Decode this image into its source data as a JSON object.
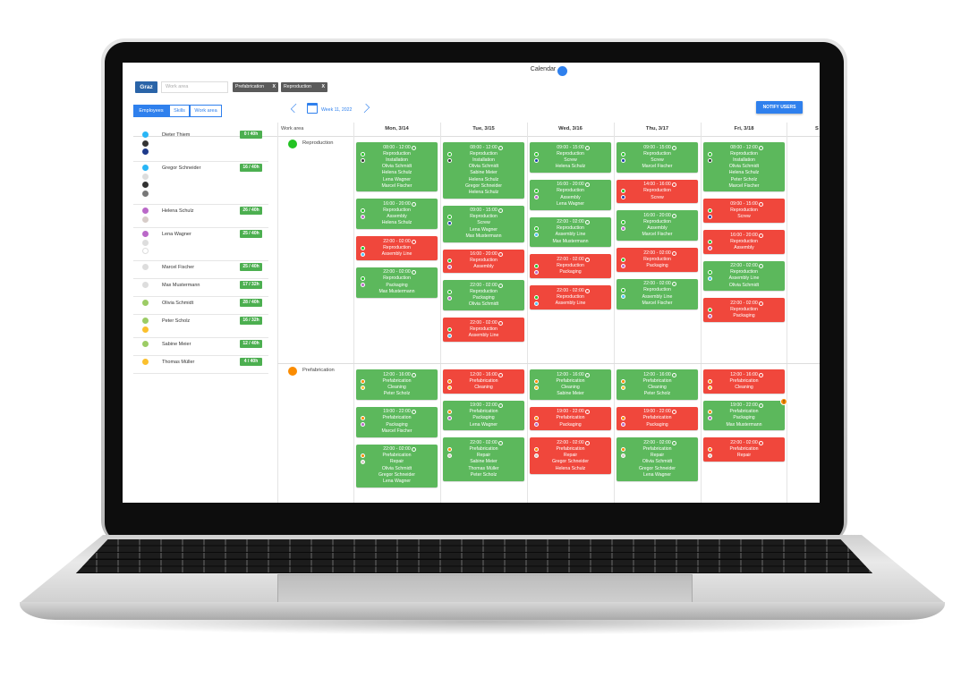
{
  "header": {
    "title": "Calendar",
    "location": "Graz",
    "search_placeholder": "Work area",
    "filters": [
      {
        "label": "Prefabrication",
        "remove": "X"
      },
      {
        "label": "Reproduction",
        "remove": "X"
      }
    ],
    "notify": "NOTIFY USERS"
  },
  "tabs": [
    "Employees",
    "Skills",
    "Work area"
  ],
  "week": "Week 11, 2022",
  "grid": {
    "corner": "Work area",
    "days": [
      "Mon, 3/14",
      "Tue, 3/15",
      "Wed, 3/16",
      "Thu, 3/17",
      "Fri, 3/18"
    ],
    "cut_day": "S"
  },
  "employees": [
    {
      "name": "Dieter Thiem",
      "hours": "0 / 40h",
      "dots": [
        "#29b6f6",
        "#333333",
        "#1e3a8a"
      ]
    },
    {
      "name": "Gregor Schneider",
      "hours": "16 / 40h",
      "dots": [
        "#29b6f6",
        "#dddddd",
        "#333333",
        "#777777"
      ]
    },
    {
      "name": "Helena Schulz",
      "hours": "26 / 40h",
      "dots": [
        "#ba68c8",
        "#d7ccc8"
      ]
    },
    {
      "name": "Lena Wagner",
      "hours": "25 / 40h",
      "dots": [
        "#ba68c8",
        "#dddddd",
        "#ffffff"
      ]
    },
    {
      "name": "Marcel Fischer",
      "hours": "25 / 40h",
      "dots": [
        "#dddddd"
      ]
    },
    {
      "name": "Max Mustermann",
      "hours": "17 / 32h",
      "dots": [
        "#dddddd"
      ]
    },
    {
      "name": "Olivia Schmidt",
      "hours": "28 / 40h",
      "dots": [
        "#9ccc65"
      ]
    },
    {
      "name": "Peter Scholz",
      "hours": "16 / 32h",
      "dots": [
        "#9ccc65",
        "#fbc02d"
      ]
    },
    {
      "name": "Sabine Meier",
      "hours": "12 / 40h",
      "dots": [
        "#9ccc65"
      ]
    },
    {
      "name": "Thomas Müller",
      "hours": "4 / 40h",
      "dots": [
        "#fbc02d"
      ]
    }
  ],
  "areas": [
    {
      "name": "Reproduction",
      "color": "#22c322",
      "skill_colors": {
        "Installation": "#333333",
        "Assembly": "#ba68c8",
        "Screw": "#1e40af",
        "Assembly Line": "#4fc3f7",
        "Packaging": "#ba68c8"
      },
      "days": [
        [
          {
            "time": "08:00 - 12:00",
            "area": "Reproduction",
            "skill": "Installation",
            "staffed": true,
            "names": [
              "Olivia Schmidt",
              "Helena Schulz",
              "Lena Wagner",
              "Marcel Fischer"
            ]
          },
          {
            "time": "16:00 - 20:00",
            "area": "Reproduction",
            "skill": "Assembly",
            "staffed": true,
            "names": [
              "Helena Schulz"
            ]
          },
          {
            "time": "22:00 - 02:00",
            "area": "Reproduction",
            "skill": "Assembly Line",
            "staffed": false,
            "names": []
          },
          {
            "time": "22:00 - 02:00",
            "area": "Reproduction",
            "skill": "Packaging",
            "staffed": true,
            "names": [
              "Max Mustermann"
            ]
          }
        ],
        [
          {
            "time": "08:00 - 12:00",
            "area": "Reproduction",
            "skill": "Installation",
            "staffed": true,
            "names": [
              "Olivia Schmidt",
              "Sabine Meier",
              "Helena Schulz",
              "Gregor Schneider",
              "Helena Schulz"
            ]
          },
          {
            "time": "09:00 - 15:00",
            "area": "Reproduction",
            "skill": "Screw",
            "staffed": true,
            "names": [
              "Lena Wagner",
              "Max Mustermann"
            ]
          },
          {
            "time": "16:00 - 20:00",
            "area": "Reproduction",
            "skill": "Assembly",
            "staffed": false,
            "names": []
          },
          {
            "time": "22:00 - 02:00",
            "area": "Reproduction",
            "skill": "Packaging",
            "staffed": true,
            "names": [
              "Olivia Schmidt"
            ]
          },
          {
            "time": "22:00 - 02:00",
            "area": "Reproduction",
            "skill": "Assembly Line",
            "staffed": false,
            "names": []
          }
        ],
        [
          {
            "time": "09:00 - 15:00",
            "area": "Reproduction",
            "skill": "Screw",
            "staffed": true,
            "names": [
              "Helena Schulz"
            ]
          },
          {
            "time": "16:00 - 20:00",
            "area": "Reproduction",
            "skill": "Assembly",
            "staffed": true,
            "names": [
              "Lena Wagner"
            ]
          },
          {
            "time": "22:00 - 02:00",
            "area": "Reproduction",
            "skill": "Assembly Line",
            "staffed": true,
            "names": [
              "Max Mustermann"
            ]
          },
          {
            "time": "22:00 - 02:00",
            "area": "Reproduction",
            "skill": "Packaging",
            "staffed": false,
            "names": []
          },
          {
            "time": "22:00 - 02:00",
            "area": "Reproduction",
            "skill": "Assembly Line",
            "staffed": false,
            "names": []
          }
        ],
        [
          {
            "time": "09:00 - 15:00",
            "area": "Reproduction",
            "skill": "Screw",
            "staffed": true,
            "names": [
              "Marcel Fischer"
            ]
          },
          {
            "time": "14:00 - 16:00",
            "area": "Reproduction",
            "skill": "Screw",
            "staffed": false,
            "names": []
          },
          {
            "time": "16:00 - 20:00",
            "area": "Reproduction",
            "skill": "Assembly",
            "staffed": true,
            "names": [
              "Marcel Fischer"
            ]
          },
          {
            "time": "22:00 - 02:00",
            "area": "Reproduction",
            "skill": "Packaging",
            "staffed": false,
            "names": []
          },
          {
            "time": "22:00 - 02:00",
            "area": "Reproduction",
            "skill": "Assembly Line",
            "staffed": true,
            "names": [
              "Marcel Fischer"
            ]
          }
        ],
        [
          {
            "time": "08:00 - 12:00",
            "area": "Reproduction",
            "skill": "Installation",
            "staffed": true,
            "names": [
              "Olivia Schmidt",
              "Helena Schulz",
              "Peter Scholz",
              "Marcel Fischer"
            ]
          },
          {
            "time": "09:00 - 15:00",
            "area": "Reproduction",
            "skill": "Screw",
            "staffed": false,
            "names": []
          },
          {
            "time": "16:00 - 20:00",
            "area": "Reproduction",
            "skill": "Assembly",
            "staffed": false,
            "names": []
          },
          {
            "time": "22:00 - 02:00",
            "area": "Reproduction",
            "skill": "Assembly Line",
            "staffed": true,
            "names": [
              "Olivia Schmidt"
            ]
          },
          {
            "time": "22:00 - 02:00",
            "area": "Reproduction",
            "skill": "Packaging",
            "staffed": false,
            "names": []
          }
        ]
      ]
    },
    {
      "name": "Prefabrication",
      "color": "#fb8c00",
      "skill_colors": {
        "Cleaning": "#fbc02d",
        "Packaging": "#ba68c8",
        "Repair": "#d7ccc8"
      },
      "days": [
        [
          {
            "time": "12:00 - 16:00",
            "area": "Prefabrication",
            "skill": "Cleaning",
            "staffed": true,
            "names": [
              "Peter Scholz"
            ]
          },
          {
            "time": "19:00 - 22:00",
            "area": "Prefabrication",
            "skill": "Packaging",
            "staffed": true,
            "names": [
              "Marcel Fischer"
            ]
          },
          {
            "time": "22:00 - 02:00",
            "area": "Prefabrication",
            "skill": "Repair",
            "staffed": true,
            "names": [
              "Olivia Schmidt",
              "Gregor Schneider",
              "Lena Wagner"
            ]
          }
        ],
        [
          {
            "time": "12:00 - 16:00",
            "area": "Prefabrication",
            "skill": "Cleaning",
            "staffed": false,
            "names": []
          },
          {
            "time": "19:00 - 22:00",
            "area": "Prefabrication",
            "skill": "Packaging",
            "staffed": true,
            "names": [
              "Lena Wagner"
            ]
          },
          {
            "time": "22:00 - 02:00",
            "area": "Prefabrication",
            "skill": "Repair",
            "staffed": true,
            "names": [
              "Sabine Meier",
              "Thomas Müller",
              "Peter Scholz"
            ]
          }
        ],
        [
          {
            "time": "12:00 - 16:00",
            "area": "Prefabrication",
            "skill": "Cleaning",
            "staffed": true,
            "names": [
              "Sabine Meier"
            ]
          },
          {
            "time": "19:00 - 22:00",
            "area": "Prefabrication",
            "skill": "Packaging",
            "staffed": false,
            "names": []
          },
          {
            "time": "22:00 - 02:00",
            "area": "Prefabrication",
            "skill": "Repair",
            "staffed": false,
            "names": [
              "Gregor Schneider",
              "Helena Schulz"
            ]
          }
        ],
        [
          {
            "time": "12:00 - 16:00",
            "area": "Prefabrication",
            "skill": "Cleaning",
            "staffed": true,
            "names": [
              "Peter Scholz"
            ]
          },
          {
            "time": "19:00 - 22:00",
            "area": "Prefabrication",
            "skill": "Packaging",
            "staffed": false,
            "names": []
          },
          {
            "time": "22:00 - 02:00",
            "area": "Prefabrication",
            "skill": "Repair",
            "staffed": true,
            "names": [
              "Olivia Schmidt",
              "Gregor Schneider",
              "Lena Wagner"
            ]
          }
        ],
        [
          {
            "time": "12:00 - 16:00",
            "area": "Prefabrication",
            "skill": "Cleaning",
            "staffed": false,
            "names": []
          },
          {
            "time": "19:00 - 22:00",
            "area": "Prefabrication",
            "skill": "Packaging",
            "staffed": true,
            "names": [
              "Max Mustermann"
            ],
            "alert": "!"
          },
          {
            "time": "22:00 - 02:00",
            "area": "Prefabrication",
            "skill": "Repair",
            "staffed": false,
            "names": []
          }
        ]
      ]
    }
  ]
}
